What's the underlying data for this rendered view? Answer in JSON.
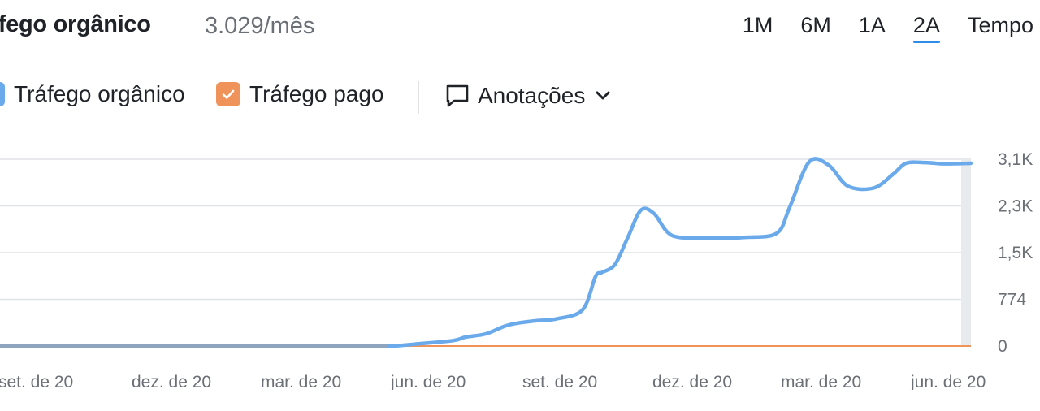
{
  "header": {
    "title": "áfego orgânico",
    "metric": "3.029/mês",
    "periods": [
      {
        "label": "1M",
        "active": false
      },
      {
        "label": "6M",
        "active": false
      },
      {
        "label": "1A",
        "active": false
      },
      {
        "label": "2A",
        "active": true
      },
      {
        "label": "Tempo",
        "active": false
      }
    ]
  },
  "legend": {
    "organic_label": "Tráfego orgânico",
    "paid_label": "Tráfego pago",
    "annotations_label": "Anotações",
    "organic_color": "#6aaaeb",
    "paid_color": "#f0935a",
    "checkbox_icon": "check-icon",
    "annotations_icon": "speech-bubble-icon",
    "dropdown_icon": "chevron-down-icon"
  },
  "chart_data": {
    "type": "line",
    "y_ticks": [
      "3,1K",
      "2,3K",
      "1,5K",
      "774",
      "0"
    ],
    "y_tick_values": [
      3096,
      2322,
      1548,
      774,
      0
    ],
    "ylim": [
      0,
      3096
    ],
    "x_ticks": [
      "set. de 20",
      "dez. de 20",
      "mar. de 20",
      "jun. de 20",
      "set. de 20",
      "dez. de 20",
      "mar. de 20",
      "jun. de 20"
    ],
    "grid": true,
    "series": [
      {
        "name": "Tráfego orgânico",
        "color": "#6aaaeb",
        "x": [
          0.0,
          0.25,
          0.5,
          0.75,
          1.0,
          1.25,
          1.5,
          1.75,
          2.0,
          2.25,
          2.5,
          2.75,
          3.0,
          3.1,
          3.25,
          3.5,
          3.6,
          3.75,
          3.9,
          4.0,
          4.15,
          4.3,
          4.5,
          4.6,
          4.65,
          4.75,
          4.85,
          4.95,
          5.05,
          5.15,
          5.25,
          5.5,
          5.75,
          6.0,
          6.1,
          6.25,
          6.4,
          6.55,
          6.75,
          6.9,
          7.0,
          7.15,
          7.3,
          7.5
        ],
        "values": [
          0,
          0,
          0,
          0,
          0,
          0,
          0,
          0,
          0,
          0,
          0,
          0,
          0,
          10,
          40,
          90,
          150,
          200,
          330,
          380,
          420,
          450,
          600,
          1150,
          1220,
          1350,
          1800,
          2250,
          2200,
          1900,
          1800,
          1790,
          1800,
          1870,
          2300,
          3050,
          3000,
          2650,
          2620,
          2850,
          3030,
          3040,
          3020,
          3029
        ]
      },
      {
        "name": "Tráfego pago",
        "color": "#f0935a",
        "x": [
          0,
          7.5
        ],
        "values": [
          0,
          0
        ]
      }
    ]
  }
}
